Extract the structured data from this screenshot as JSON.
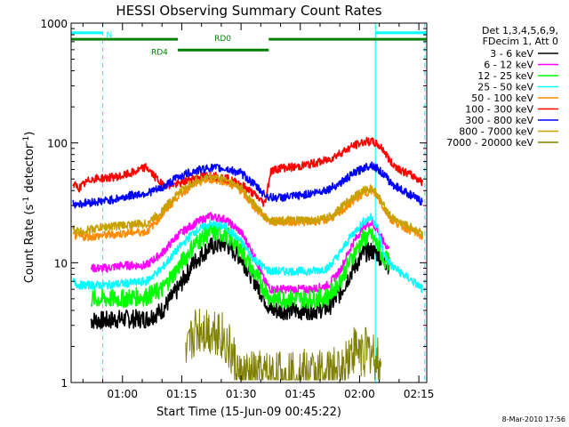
{
  "chart_data": {
    "type": "line",
    "title": "HESSI Observing Summary Count Rates",
    "xlabel": "Start Time (15-Jun-09 00:45:22)",
    "ylabel": "Count Rate (s⁻¹ detector⁻¹)",
    "yscale": "log",
    "ylim": [
      1,
      1000
    ],
    "xlim_minutes": [
      47,
      137
    ],
    "x_ticks": [
      "01:00",
      "01:15",
      "01:30",
      "01:45",
      "02:00",
      "02:15"
    ],
    "x_tick_minutes": [
      60,
      75,
      90,
      105,
      120,
      135
    ],
    "y_ticks": [
      "1",
      "10",
      "100",
      "1000"
    ],
    "y_tick_values": [
      1,
      10,
      100,
      1000
    ],
    "grid": false,
    "legend_position": "right",
    "legend_header": [
      "Det 1,3,4,5,6,9,",
      "FDecim 1, Att 0"
    ],
    "series": [
      {
        "name": "3 - 6 keV",
        "color": "#000000",
        "x": [
          52,
          56,
          60,
          63,
          66,
          70,
          74,
          78,
          82,
          86,
          90,
          93,
          96,
          97.5,
          100,
          104,
          108,
          112,
          115,
          118,
          121,
          123,
          124.5,
          126,
          127.5
        ],
        "y": [
          3.3,
          3.3,
          3.4,
          3.4,
          3.4,
          4.0,
          6.0,
          10.0,
          13.5,
          14.5,
          11.0,
          7.5,
          5.0,
          4.0,
          4.0,
          4.0,
          4.0,
          4.2,
          5.5,
          8.5,
          12.0,
          12.5,
          12.0,
          10.5,
          9.5
        ]
      },
      {
        "name": "6 - 12 keV",
        "color": "#ff00ff",
        "x": [
          52,
          56,
          60,
          63,
          66,
          70,
          74,
          78,
          82,
          86,
          90,
          93,
          96,
          97.5,
          100,
          104,
          108,
          112,
          115,
          118,
          121,
          123,
          124.5,
          126,
          127.5
        ],
        "y": [
          9.0,
          9.0,
          9.5,
          9.5,
          9.5,
          12.0,
          17.0,
          21.0,
          24.5,
          23.0,
          18.0,
          12.0,
          7.0,
          6.0,
          6.0,
          6.0,
          6.0,
          6.5,
          8.5,
          14.0,
          20.0,
          21.5,
          19.0,
          15.0,
          13.0
        ]
      },
      {
        "name": "12 - 25 keV",
        "color": "#00ff00",
        "x": [
          52,
          56,
          60,
          63,
          66,
          70,
          74,
          78,
          82,
          86,
          90,
          93,
          96,
          97.5,
          100,
          104,
          108,
          112,
          115,
          118,
          121,
          123,
          124.5,
          126,
          127.5
        ],
        "y": [
          5.0,
          5.0,
          5.0,
          5.2,
          5.2,
          6.0,
          9.0,
          14.0,
          18.0,
          17.5,
          13.0,
          8.5,
          6.0,
          5.0,
          5.0,
          5.0,
          5.0,
          5.2,
          7.0,
          11.0,
          16.0,
          17.0,
          14.0,
          11.0,
          10.0
        ]
      },
      {
        "name": "25 - 50 keV",
        "color": "#00ffff",
        "x": [
          47.5,
          49,
          52,
          56,
          60,
          63,
          66,
          70,
          74,
          78,
          82,
          86,
          90,
          93,
          96,
          97.5,
          100,
          104,
          108,
          112,
          115,
          118,
          121,
          123,
          124.5,
          126,
          128,
          131,
          134,
          136
        ],
        "y": [
          7.0,
          6.5,
          6.5,
          6.5,
          6.7,
          6.8,
          7.0,
          9.0,
          13.0,
          18.0,
          21.0,
          20.0,
          15.0,
          11.0,
          9.0,
          8.5,
          8.5,
          8.5,
          8.5,
          9.0,
          12.0,
          17.0,
          22.0,
          24.0,
          20.0,
          12.0,
          9.5,
          8.0,
          6.8,
          6.0
        ]
      },
      {
        "name": "50 - 100 keV",
        "color": "#ff8c00",
        "x": [
          47.5,
          49,
          52,
          56,
          60,
          63,
          66,
          70,
          74,
          78,
          82,
          86,
          90,
          93,
          96,
          97.5,
          100,
          104,
          108,
          112,
          115,
          118,
          121,
          123,
          124.5,
          126,
          128,
          131,
          134,
          136
        ],
        "y": [
          17.0,
          16.5,
          16.5,
          17.0,
          17.5,
          18.0,
          18.0,
          25.0,
          36.0,
          45.0,
          50.0,
          48.0,
          40.0,
          30.0,
          24.0,
          22.0,
          22.0,
          22.0,
          22.0,
          23.0,
          26.0,
          32.0,
          38.0,
          40.0,
          36.0,
          29.0,
          23.0,
          20.0,
          18.0,
          16.5
        ]
      },
      {
        "name": "100 - 300 keV",
        "color": "#ff0000",
        "x": [
          47.5,
          49,
          52,
          56,
          60,
          63,
          66,
          70,
          74,
          78,
          82,
          86,
          90,
          93,
          96,
          97.5,
          100,
          104,
          108,
          112,
          115,
          118,
          121,
          123,
          124.5,
          126,
          128,
          131,
          134,
          136
        ],
        "y": [
          45.0,
          42.0,
          50.0,
          51.0,
          53.0,
          57.0,
          63.0,
          45.0,
          45.0,
          51.0,
          54.0,
          51.0,
          45.0,
          38.0,
          31.0,
          58.0,
          62.0,
          63.0,
          67.0,
          72.0,
          82.0,
          93.0,
          102.0,
          103.0,
          97.0,
          88.0,
          68.0,
          58.0,
          52.0,
          47.0
        ]
      },
      {
        "name": "300 - 800 keV",
        "color": "#0000ff",
        "x": [
          47.5,
          49,
          52,
          56,
          60,
          63,
          66,
          70,
          74,
          78,
          82,
          86,
          90,
          93,
          96,
          97.5,
          100,
          104,
          108,
          112,
          115,
          118,
          121,
          123,
          124.5,
          126,
          128,
          131,
          134,
          136
        ],
        "y": [
          31.0,
          31.0,
          32.0,
          33.0,
          35.0,
          37.0,
          38.0,
          42.0,
          52.0,
          58.0,
          62.0,
          61.0,
          56.0,
          46.0,
          37.0,
          35.0,
          35.0,
          36.0,
          38.0,
          41.0,
          46.0,
          54.0,
          62.0,
          66.0,
          61.0,
          55.0,
          46.0,
          40.0,
          35.0,
          32.0
        ]
      },
      {
        "name": "800 - 7000 keV",
        "color": "#c8a000",
        "x": [
          47.5,
          49,
          52,
          56,
          60,
          63,
          66,
          70,
          74,
          78,
          82,
          86,
          90,
          93,
          96,
          97.5,
          100,
          104,
          108,
          112,
          115,
          118,
          121,
          123,
          124.5,
          126,
          128,
          131,
          134,
          136
        ],
        "y": [
          19.0,
          18.0,
          19.0,
          20.0,
          20.5,
          21.0,
          21.0,
          27.0,
          38.0,
          47.0,
          52.0,
          50.0,
          42.0,
          32.0,
          24.0,
          22.5,
          22.5,
          22.5,
          22.5,
          23.5,
          28.0,
          35.0,
          40.0,
          42.0,
          37.0,
          30.0,
          24.0,
          21.0,
          19.0,
          17.5
        ]
      },
      {
        "name": "7000 - 20000 keV",
        "color": "#808000",
        "x": [
          76,
          78,
          80,
          82,
          84,
          86,
          88,
          89.5,
          115.5,
          117,
          119,
          121,
          123,
          124.5,
          125.5
        ],
        "y": [
          1.4,
          2.6,
          2.9,
          2.7,
          2.8,
          2.2,
          1.6,
          1.1,
          1.2,
          1.7,
          1.9,
          1.8,
          1.8,
          1.5,
          1.2
        ]
      }
    ],
    "annotations": [
      {
        "label": "N",
        "color": "#00ffff",
        "kind": "bar",
        "x_start": 47,
        "x_end": 55,
        "level_fraction": 0.027
      },
      {
        "label": "",
        "color": "#00ffff",
        "kind": "bar",
        "x_start": 124,
        "x_end": 137,
        "level_fraction": 0.027
      },
      {
        "label": "RD0",
        "color": "#008000",
        "kind": "bar",
        "x_start": 47,
        "x_end": 137,
        "level_fraction": 0.045,
        "gap": [
          74,
          97
        ]
      },
      {
        "label": "RD4",
        "color": "#008000",
        "kind": "bar",
        "x_start": 74,
        "x_end": 97,
        "level_fraction": 0.075
      }
    ],
    "vlines": [
      {
        "x": 47,
        "color": "#00ffff",
        "style": "solid"
      },
      {
        "x": 55,
        "color": "#00ffff",
        "style": "dashed"
      },
      {
        "x": 124,
        "color": "#00ffff",
        "style": "solid"
      },
      {
        "x": 136.5,
        "color": "#00ffff",
        "style": "dashed"
      }
    ]
  },
  "footer": {
    "timestamp": "8-Mar-2010 17:56"
  }
}
